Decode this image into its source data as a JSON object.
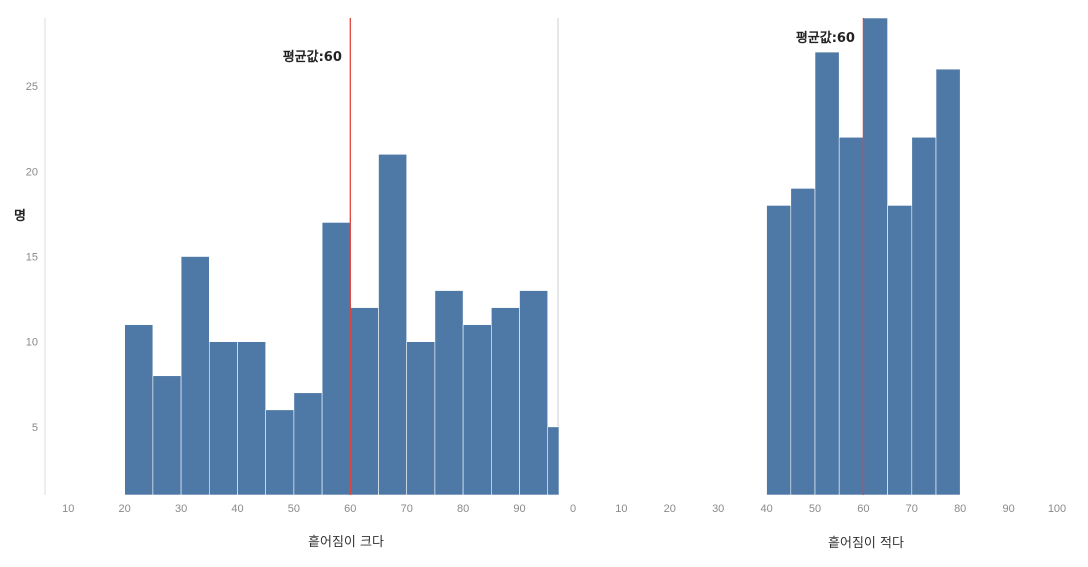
{
  "chart_data": [
    {
      "type": "bar",
      "xlabel": "흩어짐이 크다",
      "ylabel": "명",
      "bin_edges": [
        20,
        25,
        30,
        35,
        40,
        45,
        50,
        55,
        60,
        65,
        70,
        75,
        80,
        85,
        90,
        95,
        97
      ],
      "values": [
        11,
        8,
        15,
        10,
        10,
        6,
        7,
        17,
        12,
        21,
        10,
        13,
        11,
        12,
        13,
        5
      ],
      "xlim": [
        8,
        97
      ],
      "xticks": [
        "10",
        "20",
        "30",
        "40",
        "50",
        "60",
        "70",
        "80",
        "90"
      ],
      "ylim": [
        1,
        29
      ],
      "yticks": [
        "5",
        "10",
        "15",
        "20",
        "25"
      ],
      "mean": 60,
      "mean_label": "평균값:60",
      "bar_color": "#4e78a6",
      "mean_line_color": "#e0443a"
    },
    {
      "type": "bar",
      "xlabel": "흩어짐이 적다",
      "bin_edges": [
        40,
        45,
        50,
        55,
        60,
        65,
        70,
        75,
        80
      ],
      "values": [
        18,
        19,
        27,
        22,
        29,
        18,
        22,
        26
      ],
      "xlim": [
        0,
        100
      ],
      "xticks": [
        "0",
        "10",
        "20",
        "30",
        "40",
        "50",
        "60",
        "70",
        "80",
        "90",
        "100"
      ],
      "mean": 60,
      "mean_label": "평균값:60",
      "bar_color": "#4e78a6",
      "mean_line_color": "#e0443a"
    }
  ]
}
